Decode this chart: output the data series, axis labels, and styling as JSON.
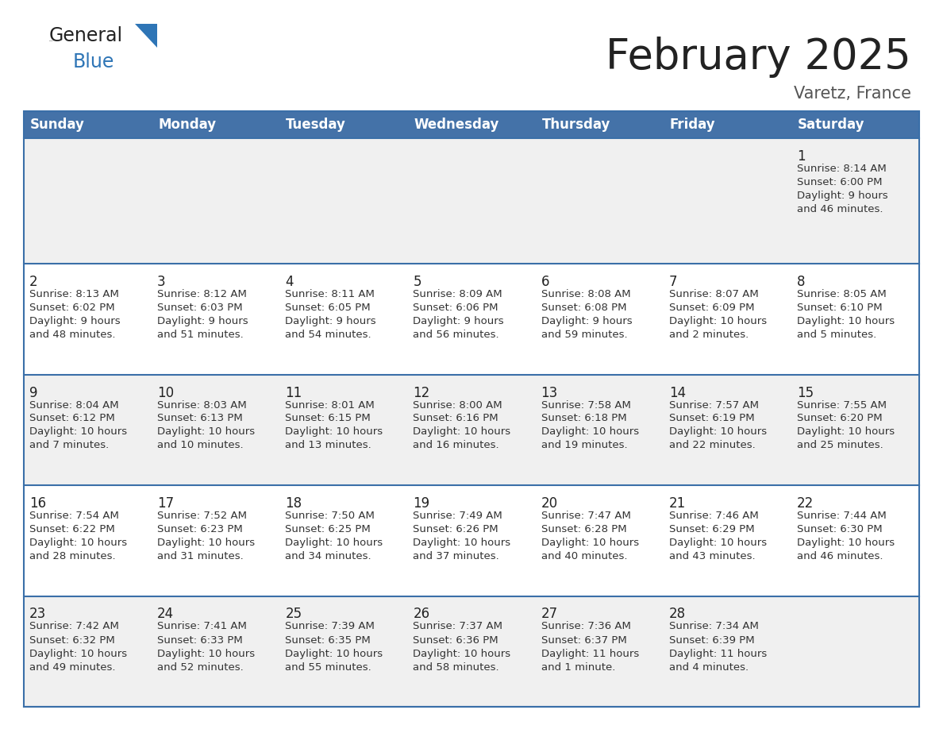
{
  "title": "February 2025",
  "subtitle": "Varetz, France",
  "header_bg": "#4472a8",
  "header_text": "#ffffff",
  "header_days": [
    "Sunday",
    "Monday",
    "Tuesday",
    "Wednesday",
    "Thursday",
    "Friday",
    "Saturday"
  ],
  "row_bg_even": "#f0f0f0",
  "row_bg_odd": "#ffffff",
  "cell_text_color": "#333333",
  "day_num_color": "#222222",
  "border_color": "#3a6fa8",
  "week_border_color": "#3a6fa8",
  "logo_general_color": "#222222",
  "logo_blue_color": "#2e75b6",
  "logo_triangle_color": "#2e75b6",
  "title_color": "#222222",
  "subtitle_color": "#555555",
  "calendar_data": [
    [
      {
        "day": null,
        "info": null
      },
      {
        "day": null,
        "info": null
      },
      {
        "day": null,
        "info": null
      },
      {
        "day": null,
        "info": null
      },
      {
        "day": null,
        "info": null
      },
      {
        "day": null,
        "info": null
      },
      {
        "day": 1,
        "info": "Sunrise: 8:14 AM\nSunset: 6:00 PM\nDaylight: 9 hours\nand 46 minutes."
      }
    ],
    [
      {
        "day": 2,
        "info": "Sunrise: 8:13 AM\nSunset: 6:02 PM\nDaylight: 9 hours\nand 48 minutes."
      },
      {
        "day": 3,
        "info": "Sunrise: 8:12 AM\nSunset: 6:03 PM\nDaylight: 9 hours\nand 51 minutes."
      },
      {
        "day": 4,
        "info": "Sunrise: 8:11 AM\nSunset: 6:05 PM\nDaylight: 9 hours\nand 54 minutes."
      },
      {
        "day": 5,
        "info": "Sunrise: 8:09 AM\nSunset: 6:06 PM\nDaylight: 9 hours\nand 56 minutes."
      },
      {
        "day": 6,
        "info": "Sunrise: 8:08 AM\nSunset: 6:08 PM\nDaylight: 9 hours\nand 59 minutes."
      },
      {
        "day": 7,
        "info": "Sunrise: 8:07 AM\nSunset: 6:09 PM\nDaylight: 10 hours\nand 2 minutes."
      },
      {
        "day": 8,
        "info": "Sunrise: 8:05 AM\nSunset: 6:10 PM\nDaylight: 10 hours\nand 5 minutes."
      }
    ],
    [
      {
        "day": 9,
        "info": "Sunrise: 8:04 AM\nSunset: 6:12 PM\nDaylight: 10 hours\nand 7 minutes."
      },
      {
        "day": 10,
        "info": "Sunrise: 8:03 AM\nSunset: 6:13 PM\nDaylight: 10 hours\nand 10 minutes."
      },
      {
        "day": 11,
        "info": "Sunrise: 8:01 AM\nSunset: 6:15 PM\nDaylight: 10 hours\nand 13 minutes."
      },
      {
        "day": 12,
        "info": "Sunrise: 8:00 AM\nSunset: 6:16 PM\nDaylight: 10 hours\nand 16 minutes."
      },
      {
        "day": 13,
        "info": "Sunrise: 7:58 AM\nSunset: 6:18 PM\nDaylight: 10 hours\nand 19 minutes."
      },
      {
        "day": 14,
        "info": "Sunrise: 7:57 AM\nSunset: 6:19 PM\nDaylight: 10 hours\nand 22 minutes."
      },
      {
        "day": 15,
        "info": "Sunrise: 7:55 AM\nSunset: 6:20 PM\nDaylight: 10 hours\nand 25 minutes."
      }
    ],
    [
      {
        "day": 16,
        "info": "Sunrise: 7:54 AM\nSunset: 6:22 PM\nDaylight: 10 hours\nand 28 minutes."
      },
      {
        "day": 17,
        "info": "Sunrise: 7:52 AM\nSunset: 6:23 PM\nDaylight: 10 hours\nand 31 minutes."
      },
      {
        "day": 18,
        "info": "Sunrise: 7:50 AM\nSunset: 6:25 PM\nDaylight: 10 hours\nand 34 minutes."
      },
      {
        "day": 19,
        "info": "Sunrise: 7:49 AM\nSunset: 6:26 PM\nDaylight: 10 hours\nand 37 minutes."
      },
      {
        "day": 20,
        "info": "Sunrise: 7:47 AM\nSunset: 6:28 PM\nDaylight: 10 hours\nand 40 minutes."
      },
      {
        "day": 21,
        "info": "Sunrise: 7:46 AM\nSunset: 6:29 PM\nDaylight: 10 hours\nand 43 minutes."
      },
      {
        "day": 22,
        "info": "Sunrise: 7:44 AM\nSunset: 6:30 PM\nDaylight: 10 hours\nand 46 minutes."
      }
    ],
    [
      {
        "day": 23,
        "info": "Sunrise: 7:42 AM\nSunset: 6:32 PM\nDaylight: 10 hours\nand 49 minutes."
      },
      {
        "day": 24,
        "info": "Sunrise: 7:41 AM\nSunset: 6:33 PM\nDaylight: 10 hours\nand 52 minutes."
      },
      {
        "day": 25,
        "info": "Sunrise: 7:39 AM\nSunset: 6:35 PM\nDaylight: 10 hours\nand 55 minutes."
      },
      {
        "day": 26,
        "info": "Sunrise: 7:37 AM\nSunset: 6:36 PM\nDaylight: 10 hours\nand 58 minutes."
      },
      {
        "day": 27,
        "info": "Sunrise: 7:36 AM\nSunset: 6:37 PM\nDaylight: 11 hours\nand 1 minute."
      },
      {
        "day": 28,
        "info": "Sunrise: 7:34 AM\nSunset: 6:39 PM\nDaylight: 11 hours\nand 4 minutes."
      },
      {
        "day": null,
        "info": null
      }
    ]
  ]
}
